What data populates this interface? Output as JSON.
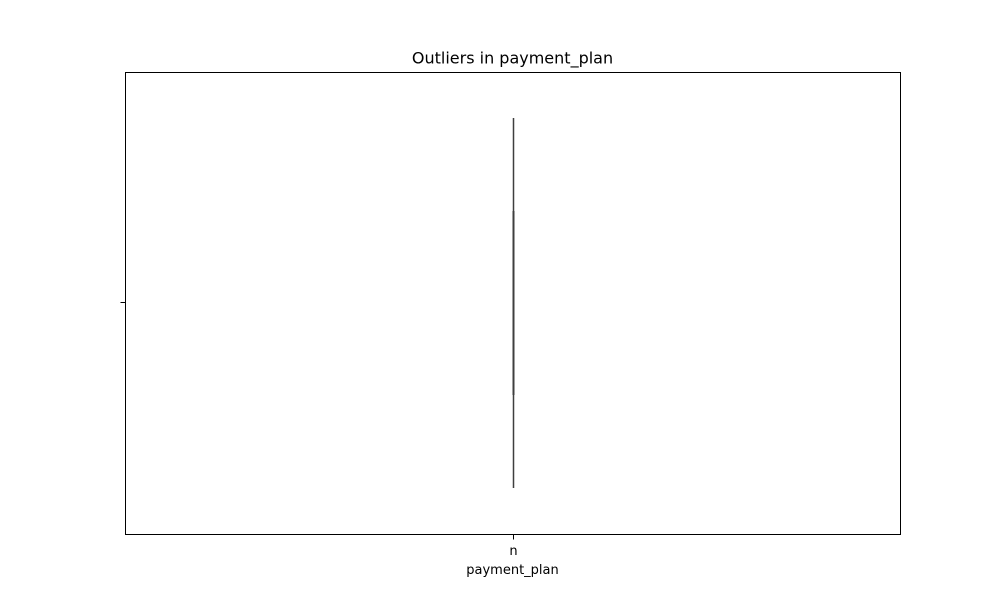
{
  "chart_data": {
    "type": "box",
    "title": "Outliers in payment_plan",
    "xlabel": "payment_plan",
    "ylabel": "",
    "categories": [
      "n"
    ],
    "series": [
      {
        "values": []
      }
    ],
    "box_colors": {
      "line": "#3f3f3f",
      "frame": "#000000"
    },
    "grid": false
  }
}
